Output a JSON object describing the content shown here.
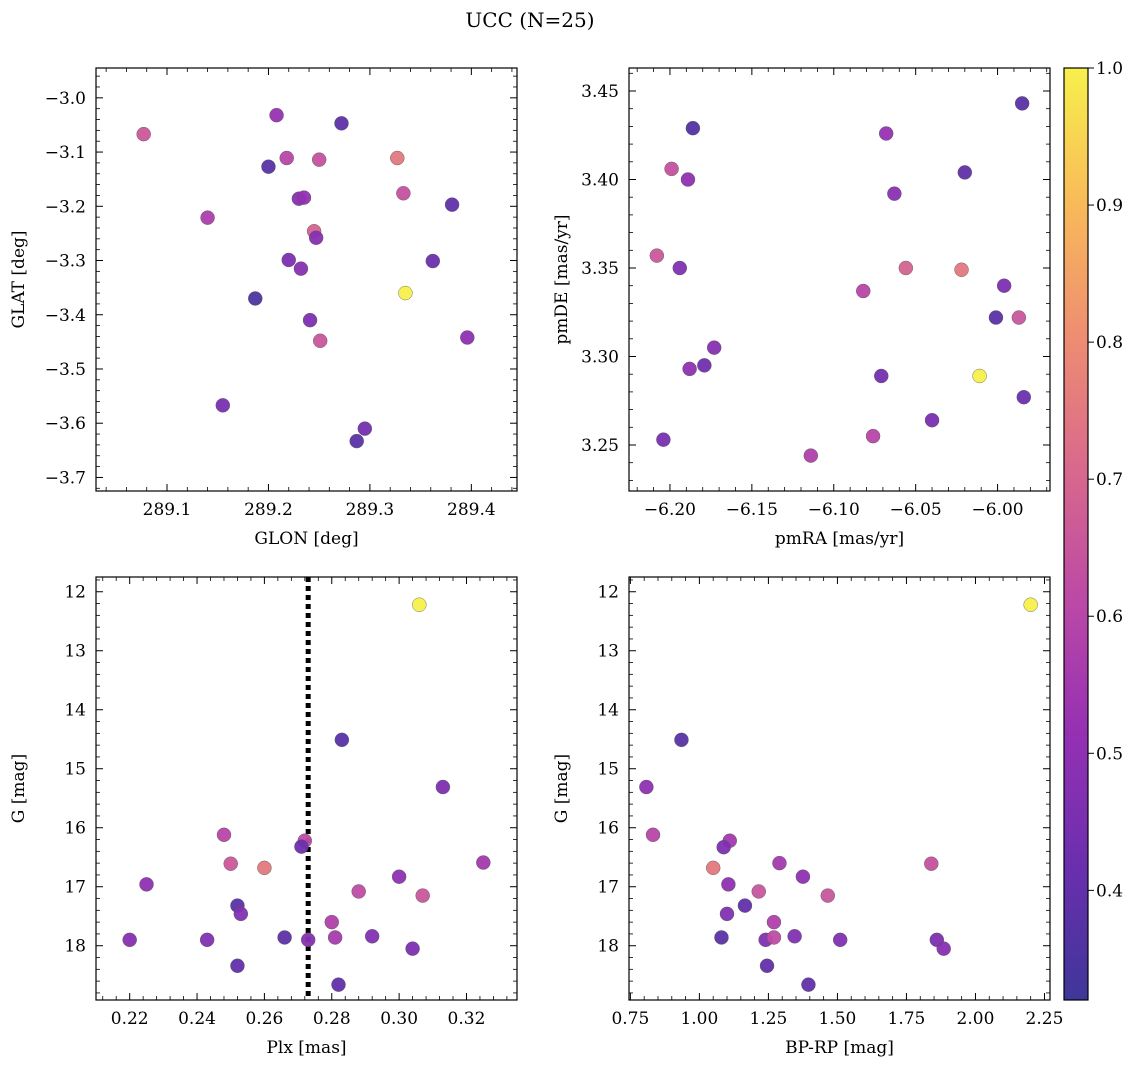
{
  "figure": {
    "title": "UCC (N=25)"
  },
  "colorbar": {
    "range": [
      0.32,
      1.0
    ],
    "ticks": [
      0.4,
      0.5,
      0.6,
      0.7,
      0.8,
      0.9,
      1.0
    ],
    "colormap": "plasma",
    "colormap_stops": [
      "#3f3698",
      "#6a2fae",
      "#9530b3",
      "#bb49a6",
      "#d9698c",
      "#ee8e71",
      "#f8bb58",
      "#f7f04c"
    ]
  },
  "chart_data": [
    {
      "type": "scatter",
      "id": "sky",
      "xlabel": "GLON [deg]",
      "ylabel": "GLAT [deg]",
      "xlim": [
        289.03,
        289.445
      ],
      "ylim": [
        -3.725,
        -2.945
      ],
      "y_inverted": false,
      "xticks": [
        289.1,
        289.2,
        289.3,
        289.4
      ],
      "xtick_labels": [
        "289.1",
        "289.2",
        "289.3",
        "289.4"
      ],
      "yticks": [
        -3.0,
        -3.1,
        -3.2,
        -3.3,
        -3.4,
        -3.5,
        -3.6,
        -3.7
      ],
      "ytick_labels": [
        "−3.0",
        "−3.1",
        "−3.2",
        "−3.3",
        "−3.4",
        "−3.5",
        "−3.6",
        "−3.7"
      ],
      "x": [
        289.077,
        289.208,
        289.272,
        289.2,
        289.218,
        289.25,
        289.327,
        289.23,
        289.235,
        289.14,
        289.333,
        289.381,
        289.245,
        289.247,
        289.22,
        289.232,
        289.362,
        289.335,
        289.187,
        289.241,
        289.396,
        289.251,
        289.155,
        289.295,
        289.287
      ],
      "y": [
        -3.067,
        -3.032,
        -3.047,
        -3.127,
        -3.111,
        -3.114,
        -3.111,
        -3.186,
        -3.184,
        -3.221,
        -3.176,
        -3.197,
        -3.246,
        -3.258,
        -3.299,
        -3.315,
        -3.301,
        -3.36,
        -3.37,
        -3.41,
        -3.442,
        -3.448,
        -3.567,
        -3.61,
        -3.633
      ],
      "c": [
        0.66,
        0.52,
        0.39,
        0.38,
        0.6,
        0.64,
        0.75,
        0.48,
        0.51,
        0.57,
        0.64,
        0.4,
        0.69,
        0.48,
        0.46,
        0.48,
        0.42,
        1.0,
        0.35,
        0.46,
        0.5,
        0.65,
        0.45,
        0.44,
        0.38
      ]
    },
    {
      "type": "scatter",
      "id": "pm",
      "xlabel": "pmRA [mas/yr]",
      "ylabel": "pmDE [mas/yr]",
      "xlim": [
        -6.225,
        -5.968
      ],
      "ylim": [
        3.224,
        3.463
      ],
      "y_inverted": false,
      "xticks": [
        -6.2,
        -6.15,
        -6.1,
        -6.05,
        -6.0
      ],
      "xtick_labels": [
        "−6.20",
        "−6.15",
        "−6.10",
        "−6.05",
        "−6.00"
      ],
      "yticks": [
        3.25,
        3.3,
        3.35,
        3.4,
        3.45
      ],
      "ytick_labels": [
        "3.25",
        "3.30",
        "3.35",
        "3.40",
        "3.45"
      ],
      "x": [
        -5.985,
        -6.186,
        -6.068,
        -6.02,
        -6.199,
        -6.189,
        -6.063,
        -6.208,
        -6.194,
        -6.056,
        -6.022,
        -6.082,
        -5.996,
        -6.001,
        -5.987,
        -6.173,
        -6.179,
        -6.188,
        -6.071,
        -6.011,
        -5.984,
        -6.04,
        -6.076,
        -6.204,
        -6.114
      ],
      "y": [
        3.443,
        3.429,
        3.426,
        3.404,
        3.406,
        3.4,
        3.392,
        3.357,
        3.35,
        3.35,
        3.349,
        3.337,
        3.34,
        3.322,
        3.322,
        3.305,
        3.295,
        3.293,
        3.289,
        3.289,
        3.277,
        3.264,
        3.255,
        3.253,
        3.244
      ],
      "c": [
        0.38,
        0.37,
        0.52,
        0.39,
        0.64,
        0.5,
        0.49,
        0.66,
        0.47,
        0.69,
        0.75,
        0.6,
        0.46,
        0.38,
        0.65,
        0.48,
        0.43,
        0.5,
        0.44,
        1.0,
        0.42,
        0.45,
        0.6,
        0.45,
        0.58
      ]
    },
    {
      "type": "scatter",
      "id": "cmd_plx",
      "xlabel": "Plx [mas]",
      "ylabel": "G [mag]",
      "xlim": [
        0.21,
        0.335
      ],
      "ylim": [
        11.75,
        18.92
      ],
      "y_inverted": true,
      "reference_line_x": 0.273,
      "xticks": [
        0.22,
        0.24,
        0.26,
        0.28,
        0.3,
        0.32
      ],
      "xtick_labels": [
        "0.22",
        "0.24",
        "0.26",
        "0.28",
        "0.30",
        "0.32"
      ],
      "yticks": [
        12,
        13,
        14,
        15,
        16,
        17,
        18
      ],
      "ytick_labels": [
        "12",
        "13",
        "14",
        "15",
        "16",
        "17",
        "18"
      ],
      "x": [
        0.306,
        0.283,
        0.313,
        0.248,
        0.272,
        0.271,
        0.325,
        0.25,
        0.26,
        0.3,
        0.307,
        0.225,
        0.288,
        0.252,
        0.253,
        0.28,
        0.22,
        0.243,
        0.266,
        0.273,
        0.281,
        0.292,
        0.304,
        0.252,
        0.282
      ],
      "y": [
        12.22,
        14.51,
        15.31,
        16.12,
        16.22,
        16.32,
        16.59,
        16.61,
        16.68,
        16.83,
        17.15,
        16.96,
        17.08,
        17.32,
        17.46,
        17.6,
        17.9,
        17.9,
        17.86,
        17.9,
        17.86,
        17.84,
        18.05,
        18.34,
        18.66
      ],
      "c": [
        1.0,
        0.38,
        0.46,
        0.6,
        0.62,
        0.42,
        0.55,
        0.66,
        0.75,
        0.5,
        0.65,
        0.5,
        0.62,
        0.38,
        0.47,
        0.58,
        0.48,
        0.47,
        0.39,
        0.48,
        0.56,
        0.47,
        0.46,
        0.4,
        0.4
      ]
    },
    {
      "type": "scatter",
      "id": "cmd_col",
      "xlabel": "BP-RP [mag]",
      "ylabel": "G [mag]",
      "xlim": [
        0.745,
        2.27
      ],
      "ylim": [
        11.75,
        18.92
      ],
      "y_inverted": true,
      "xticks": [
        0.75,
        1.0,
        1.25,
        1.5,
        1.75,
        2.0,
        2.25
      ],
      "xtick_labels": [
        "0.75",
        "1.00",
        "1.25",
        "1.50",
        "1.75",
        "2.00",
        "2.25"
      ],
      "yticks": [
        12,
        13,
        14,
        15,
        16,
        17,
        18
      ],
      "ytick_labels": [
        "12",
        "13",
        "14",
        "15",
        "16",
        "17",
        "18"
      ],
      "x": [
        2.2,
        0.935,
        0.808,
        0.832,
        1.11,
        1.088,
        1.29,
        1.84,
        1.05,
        1.375,
        1.465,
        1.105,
        1.215,
        1.165,
        1.1,
        1.27,
        1.24,
        1.27,
        1.345,
        1.51,
        1.86,
        1.885,
        1.08,
        1.245,
        1.395
      ],
      "y": [
        12.22,
        14.51,
        15.31,
        16.12,
        16.22,
        16.33,
        16.6,
        16.61,
        16.68,
        16.83,
        17.15,
        16.96,
        17.08,
        17.32,
        17.46,
        17.6,
        17.9,
        17.86,
        17.84,
        17.9,
        17.9,
        18.05,
        17.86,
        18.34,
        18.66
      ],
      "c": [
        1.0,
        0.38,
        0.5,
        0.6,
        0.55,
        0.46,
        0.55,
        0.64,
        0.75,
        0.5,
        0.65,
        0.5,
        0.65,
        0.4,
        0.47,
        0.58,
        0.47,
        0.62,
        0.47,
        0.47,
        0.46,
        0.48,
        0.38,
        0.4,
        0.4
      ]
    }
  ]
}
